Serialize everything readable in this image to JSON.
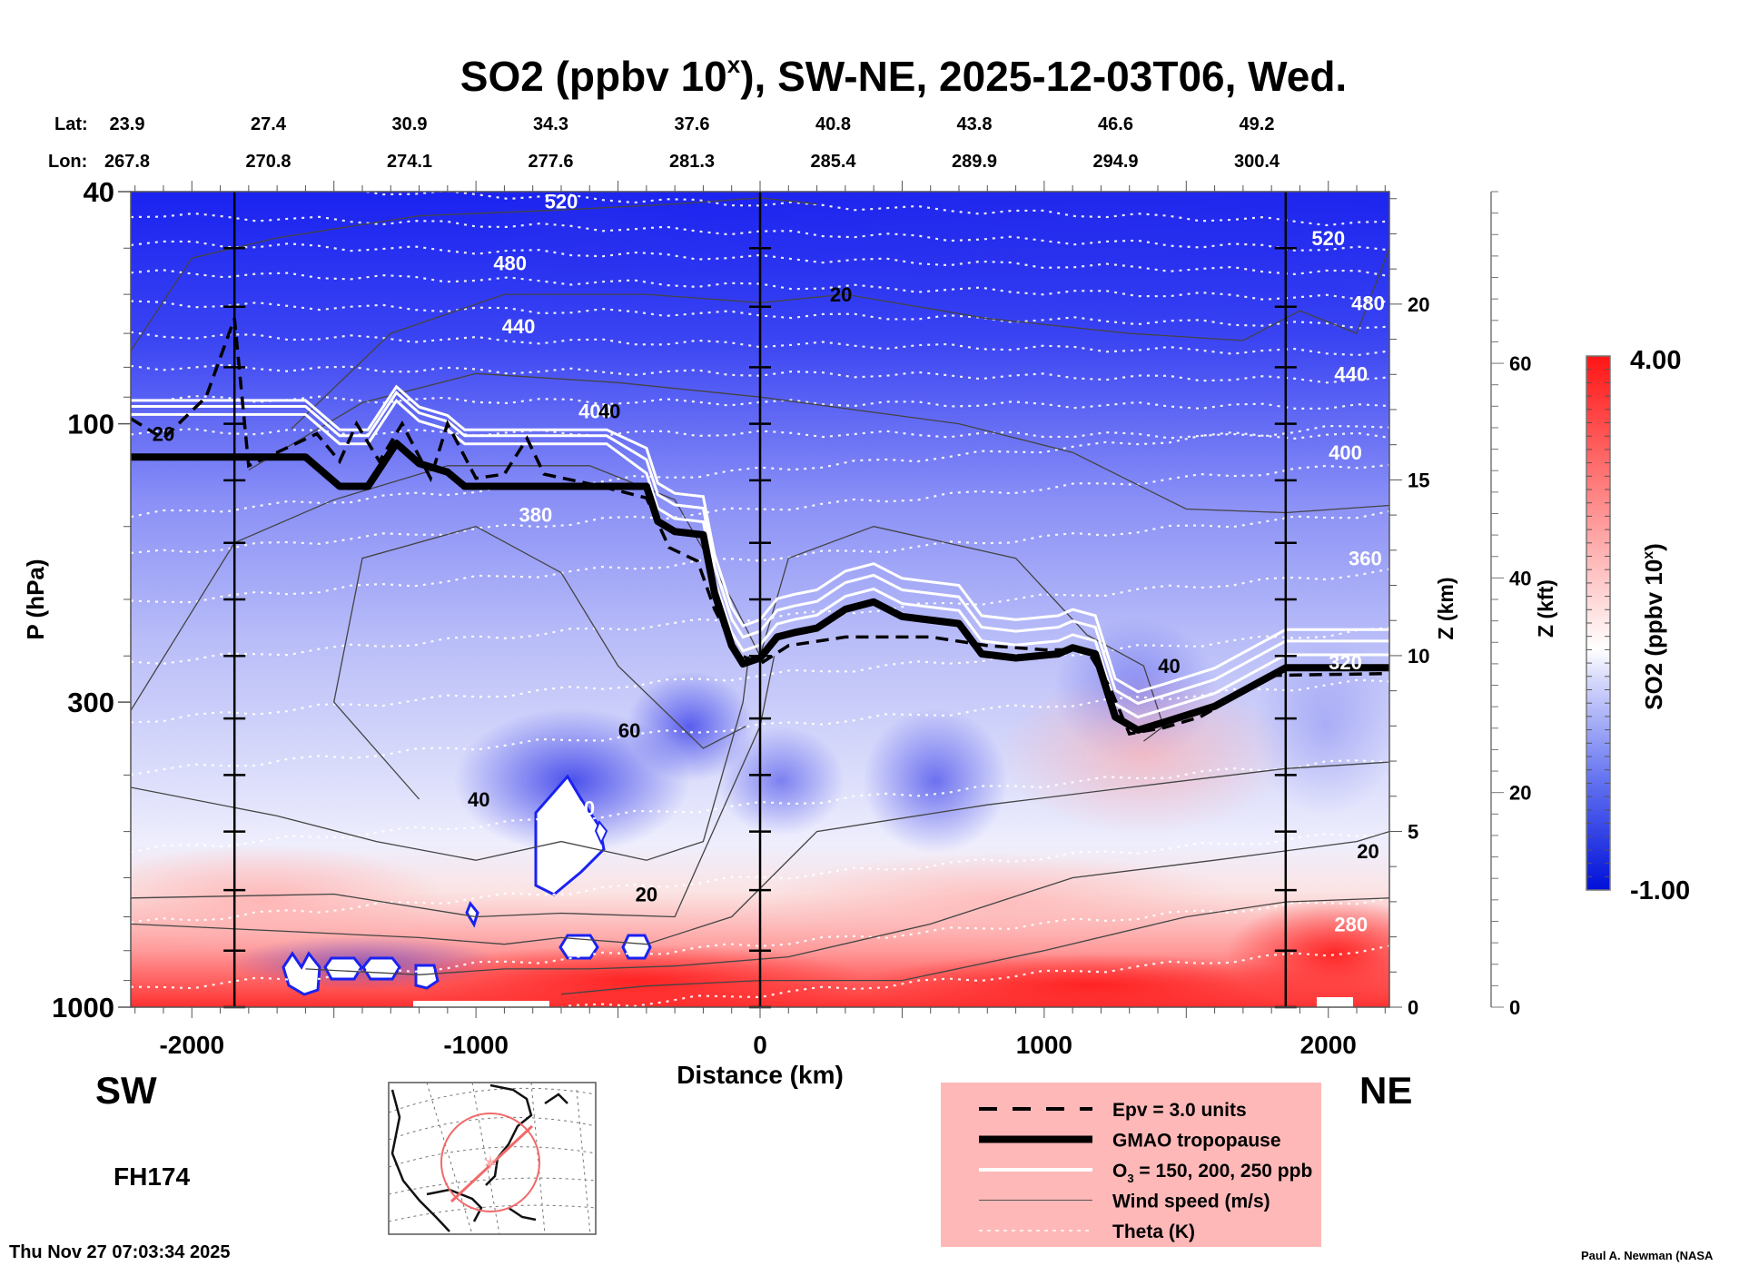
{
  "chart_data": {
    "type": "heatmap",
    "title": "SO2 (ppbv 10",
    "title_superscript": "x",
    "title_suffix": "), SW-NE, 2025-12-03T06, Wed.",
    "xlabel": "Distance (km)",
    "ylabel": "P (hPa)",
    "y2label": "Z (km)",
    "y3label": "Z (kft)",
    "xlim": [
      -2215,
      2215
    ],
    "ylim": [
      1000,
      40
    ],
    "yscale": "log",
    "x_ticks": [
      -2000,
      -1000,
      0,
      1000,
      2000
    ],
    "x_tick_labels": [
      "-2000",
      "-1000",
      "0",
      "1000",
      "2000"
    ],
    "y_ticks": [
      40,
      100,
      300,
      1000
    ],
    "y_tick_labels": [
      "40",
      "100",
      "300",
      "1000"
    ],
    "z_km_ticks": [
      0,
      5,
      10,
      15,
      20
    ],
    "z_kft_ticks": [
      0,
      20,
      40,
      60
    ],
    "direction_left": "SW",
    "direction_right": "NE",
    "lat_label": "Lat:",
    "lon_label": "Lon:",
    "lat": [
      "23.9",
      "27.4",
      "30.9",
      "34.3",
      "37.6",
      "40.8",
      "43.8",
      "46.6",
      "49.2"
    ],
    "lon": [
      "267.8",
      "270.8",
      "274.1",
      "277.6",
      "281.3",
      "285.4",
      "289.9",
      "294.9",
      "300.4"
    ],
    "reference_lines_km": [
      -1850,
      0,
      1850
    ],
    "colorbar": {
      "label": "SO2 (ppbv 10",
      "label_sup": "x",
      "label_end": ")",
      "min": -1.0,
      "max": 4.0,
      "min_label": "-1.00",
      "max_label": "4.00",
      "low_color": "#0a14e6",
      "mid_color": "#ffffff",
      "high_color": "#ff1a1a"
    },
    "theta_labels": [
      {
        "value": "520",
        "x": -700,
        "p": 41.5
      },
      {
        "value": "480",
        "x": -880,
        "p": 53
      },
      {
        "value": "440",
        "x": -850,
        "p": 68
      },
      {
        "value": "400",
        "x": -580,
        "p": 95
      },
      {
        "value": "380",
        "x": -790,
        "p": 143
      },
      {
        "value": "320",
        "x": -640,
        "p": 455
      },
      {
        "value": "520",
        "x": 2000,
        "p": 48
      },
      {
        "value": "480",
        "x": 2140,
        "p": 62
      },
      {
        "value": "440",
        "x": 2080,
        "p": 82
      },
      {
        "value": "400",
        "x": 2060,
        "p": 112
      },
      {
        "value": "360",
        "x": 2130,
        "p": 170
      },
      {
        "value": "320",
        "x": 2060,
        "p": 256
      },
      {
        "value": "280",
        "x": 2080,
        "p": 720
      }
    ],
    "wind_labels": [
      {
        "value": "20",
        "x": 285,
        "p": 60
      },
      {
        "value": "20",
        "x": -2100,
        "p": 104
      },
      {
        "value": "40",
        "x": -530,
        "p": 95
      },
      {
        "value": "60",
        "x": -460,
        "p": 335
      },
      {
        "value": "40",
        "x": -990,
        "p": 440
      },
      {
        "value": "20",
        "x": -400,
        "p": 640
      },
      {
        "value": "40",
        "x": 1440,
        "p": 260
      },
      {
        "value": "20",
        "x": 2140,
        "p": 540
      }
    ],
    "tropopause_gmao": [
      [
        -2215,
        114
      ],
      [
        -1600,
        114
      ],
      [
        -1480,
        128
      ],
      [
        -1380,
        128
      ],
      [
        -1280,
        108
      ],
      [
        -1200,
        117
      ],
      [
        -1100,
        121
      ],
      [
        -1040,
        128
      ],
      [
        -540,
        128
      ],
      [
        -400,
        128
      ],
      [
        -360,
        147
      ],
      [
        -300,
        153
      ],
      [
        -200,
        155
      ],
      [
        -160,
        195
      ],
      [
        -100,
        240
      ],
      [
        -60,
        258
      ],
      [
        0,
        252
      ],
      [
        60,
        232
      ],
      [
        120,
        228
      ],
      [
        200,
        224
      ],
      [
        300,
        208
      ],
      [
        400,
        202
      ],
      [
        500,
        214
      ],
      [
        700,
        220
      ],
      [
        780,
        248
      ],
      [
        900,
        252
      ],
      [
        1050,
        248
      ],
      [
        1100,
        242
      ],
      [
        1180,
        248
      ],
      [
        1250,
        318
      ],
      [
        1330,
        335
      ],
      [
        1420,
        325
      ],
      [
        1600,
        305
      ],
      [
        1850,
        262
      ],
      [
        2215,
        262
      ]
    ],
    "epv_3": [
      [
        -2215,
        98
      ],
      [
        -2100,
        106
      ],
      [
        -1950,
        90
      ],
      [
        -1850,
        66
      ],
      [
        -1800,
        118
      ],
      [
        -1700,
        112
      ],
      [
        -1560,
        104
      ],
      [
        -1480,
        116
      ],
      [
        -1420,
        100
      ],
      [
        -1340,
        116
      ],
      [
        -1260,
        100
      ],
      [
        -1160,
        124
      ],
      [
        -1100,
        100
      ],
      [
        -1000,
        124
      ],
      [
        -900,
        122
      ],
      [
        -820,
        106
      ],
      [
        -760,
        122
      ],
      [
        -560,
        128
      ],
      [
        -400,
        134
      ],
      [
        -320,
        163
      ],
      [
        -220,
        172
      ],
      [
        -160,
        208
      ],
      [
        -80,
        248
      ],
      [
        0,
        258
      ],
      [
        100,
        240
      ],
      [
        300,
        232
      ],
      [
        600,
        232
      ],
      [
        800,
        240
      ],
      [
        1000,
        244
      ],
      [
        1150,
        244
      ],
      [
        1230,
        282
      ],
      [
        1300,
        340
      ],
      [
        1420,
        332
      ],
      [
        1550,
        318
      ],
      [
        1800,
        270
      ],
      [
        2215,
        268
      ]
    ],
    "legend": [
      {
        "label": "Epv = 3.0 units",
        "style": "dashed-thick"
      },
      {
        "label": "GMAO tropopause",
        "style": "solid-heavy"
      },
      {
        "label": "O",
        "label_sub": "3",
        "label_end": " = 150, 200, 250 ppb",
        "style": "white-solid"
      },
      {
        "label": "Wind speed (m/s)",
        "style": "thin-gray"
      },
      {
        "label": "Theta (K)",
        "style": "white-dotted"
      }
    ],
    "legend_bg": "#ffb8b8"
  },
  "footer": {
    "forecast_hour": "FH174",
    "timestamp": "Thu Nov 27 07:03:34 2025",
    "credit": "Paul A. Newman (NASA"
  }
}
